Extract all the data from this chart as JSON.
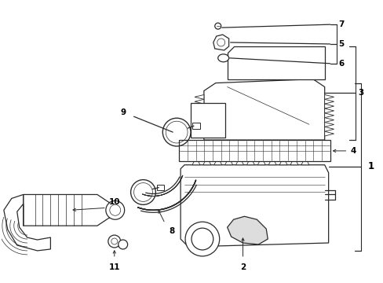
{
  "background_color": "#ffffff",
  "line_color": "#2a2a2a",
  "figure_width": 4.89,
  "figure_height": 3.6,
  "dpi": 100,
  "label_fontsize": 7.5,
  "label_bold": true
}
